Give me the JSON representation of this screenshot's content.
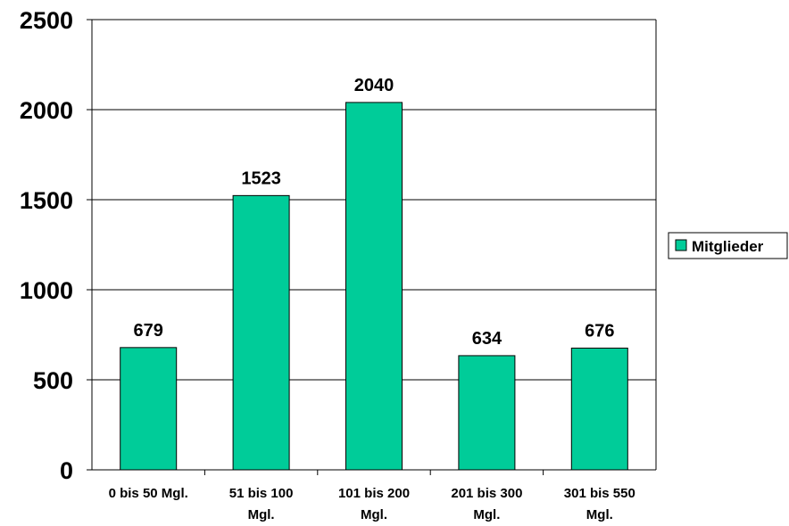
{
  "chart_data": {
    "type": "bar",
    "categories": [
      "0 bis 50 Mgl.",
      "51 bis 100 Mgl.",
      "101 bis 200 Mgl.",
      "201 bis 300 Mgl.",
      "301 bis 550 Mgl."
    ],
    "category_lines": [
      [
        "0 bis 50 Mgl."
      ],
      [
        "51 bis 100",
        "Mgl."
      ],
      [
        "101 bis 200",
        "Mgl."
      ],
      [
        "201 bis 300",
        "Mgl."
      ],
      [
        "301 bis 550",
        "Mgl."
      ]
    ],
    "series": [
      {
        "name": "Mitglieder",
        "values": [
          679,
          1523,
          2040,
          634,
          676
        ],
        "color": "#00cc99"
      }
    ],
    "y_ticks": [
      0,
      500,
      1000,
      1500,
      2000,
      2500
    ],
    "ylim": [
      0,
      2500
    ],
    "grid": true,
    "legend_position": "right",
    "title": "",
    "xlabel": "",
    "ylabel": ""
  }
}
